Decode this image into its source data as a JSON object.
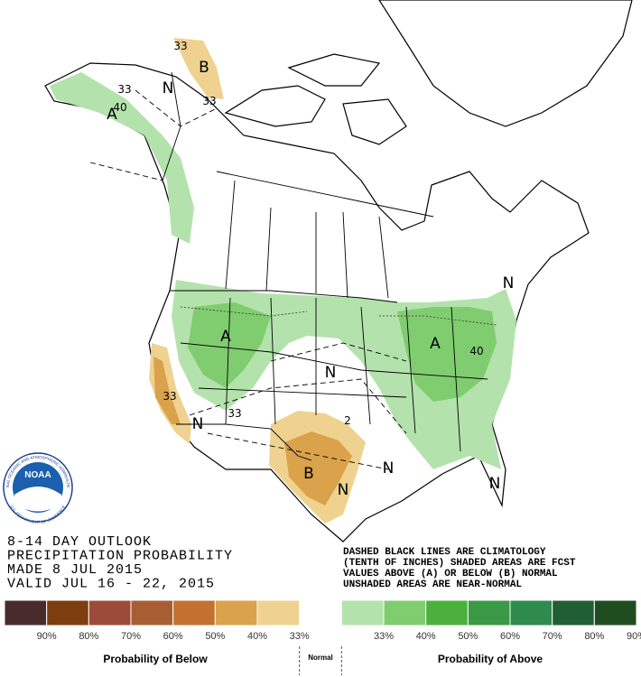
{
  "map": {
    "labels": [
      "33",
      "B",
      "N",
      "33",
      "33",
      "A",
      "40",
      "A",
      "N",
      "A",
      "40",
      "33",
      "N",
      "33",
      "2",
      "B",
      "N",
      "N",
      "N",
      "N"
    ],
    "logo": {
      "name": "NOAA",
      "ring_top": "NATIONAL OCEANIC AND ATMOSPHERIC ADMINISTRATION",
      "ring_bottom": "U.S. DEPARTMENT OF COMMERCE"
    }
  },
  "title_block": {
    "lines": [
      "8-14 DAY OUTLOOK",
      "PRECIPITATION PROBABILITY",
      "MADE  8 JUL 2015",
      "VALID  JUL 16 - 22, 2015"
    ]
  },
  "notes": {
    "lines": [
      "DASHED BLACK LINES ARE CLIMATOLOGY",
      "(TENTH OF INCHES) SHADED AREAS ARE FCST",
      "VALUES ABOVE (A) OR BELOW (B) NORMAL",
      "UNSHADED AREAS ARE NEAR-NORMAL"
    ]
  },
  "legend": {
    "swatches": [
      "#4a2b2b",
      "#7e3d0f",
      "#9c4b3a",
      "#a95d33",
      "#c2712f",
      "#d9a24b",
      "#efd290",
      "#ffffff",
      "#b4e2ad",
      "#80cd6f",
      "#4bb03c",
      "#3b9a45",
      "#2e8a4d",
      "#205f35",
      "#1f4d1f"
    ],
    "labels": [
      "90%",
      "80%",
      "70%",
      "60%",
      "50%",
      "40%",
      "33%",
      "33%",
      "40%",
      "50%",
      "60%",
      "70%",
      "80%",
      "90%"
    ],
    "below": "Probability of Below",
    "normal": "Normal",
    "above": "Probability of Above"
  }
}
